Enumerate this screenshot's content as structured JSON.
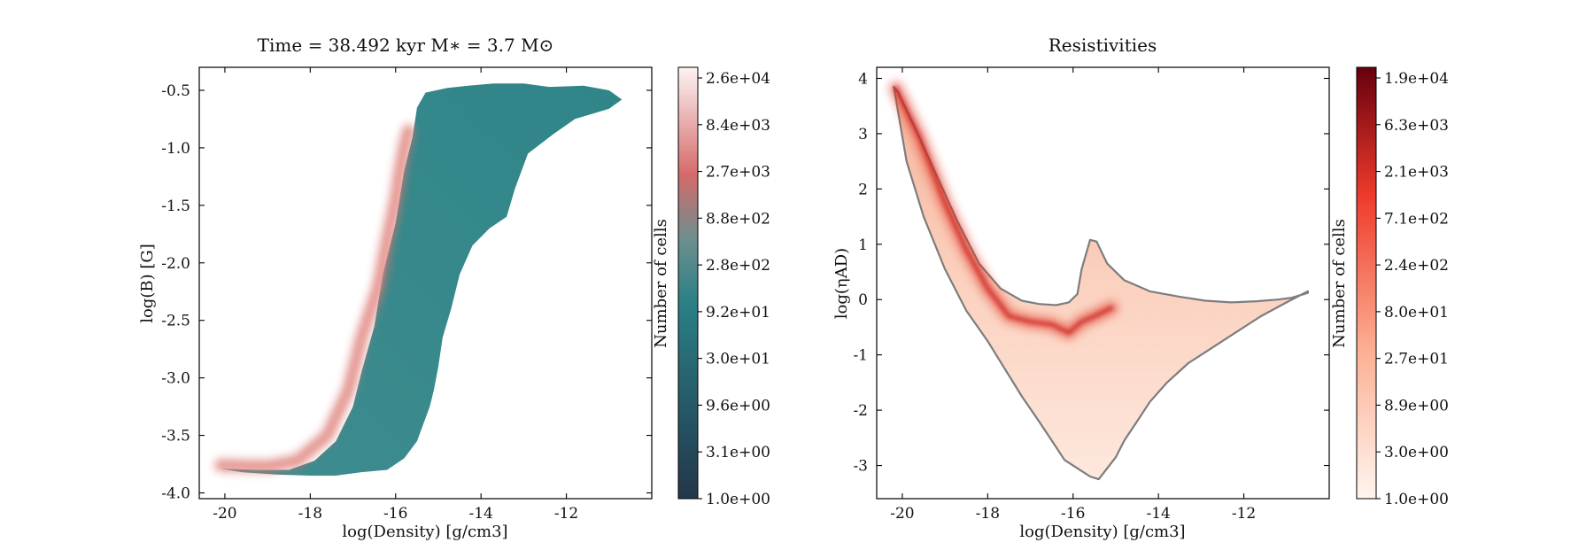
{
  "chart_data": [
    {
      "type": "heatmap",
      "title": "Time = 38.492 kyr    M$_*$ = 3.7 M$_\\odot$",
      "title_display": "Time = 38.492 kyr    M∗ = 3.7 M⊙",
      "xlabel": "log(Density) [g/cm3]",
      "ylabel": "log(B) [G]",
      "xlim": [
        -20.6,
        -10.0
      ],
      "ylim": [
        -4.05,
        -0.3
      ],
      "xticks": [
        -20,
        -18,
        -16,
        -14,
        -12
      ],
      "xtick_labels": [
        "-20",
        "-18",
        "-16",
        "-14",
        "-12"
      ],
      "yticks": [
        -4.0,
        -3.5,
        -3.0,
        -2.5,
        -2.0,
        -1.5,
        -1.0,
        -0.5
      ],
      "ytick_labels": [
        "-4.0",
        "-3.5",
        "-3.0",
        "-2.5",
        "-2.0",
        "-1.5",
        "-1.0",
        "-0.5"
      ],
      "grid": false,
      "colormap": "dark-teal to pink to white",
      "colors": [
        "#22374a",
        "#2a7f86",
        "#d46a6a",
        "#fdf3f3"
      ],
      "colorbar": {
        "label": "Number of cells",
        "scale": "log",
        "tick_labels": [
          "1.0e+00",
          "3.1e+00",
          "9.6e+00",
          "3.0e+01",
          "9.2e+01",
          "2.8e+02",
          "8.8e+02",
          "2.7e+03",
          "8.4e+03",
          "2.6e+04"
        ]
      },
      "region_outline": {
        "x": [
          -20.1,
          -19.2,
          -18.5,
          -17.9,
          -17.4,
          -17.0,
          -16.8,
          -16.5,
          -16.3,
          -16.0,
          -15.8,
          -15.6,
          -15.5,
          -15.3,
          -14.8,
          -14.3,
          -13.7,
          -13.0,
          -12.4,
          -11.6,
          -11.0,
          -10.7,
          -11.0,
          -11.8,
          -12.3,
          -12.9,
          -13.2,
          -13.4,
          -13.8,
          -14.2,
          -14.5,
          -14.7,
          -14.9,
          -15.0,
          -15.1,
          -15.2,
          -15.3,
          -15.5,
          -15.8,
          -16.2,
          -16.8,
          -17.4,
          -18.0,
          -18.8,
          -19.6,
          -20.1
        ],
        "y": [
          -3.79,
          -3.8,
          -3.8,
          -3.72,
          -3.55,
          -3.25,
          -2.95,
          -2.55,
          -2.1,
          -1.65,
          -1.2,
          -0.9,
          -0.65,
          -0.52,
          -0.48,
          -0.46,
          -0.44,
          -0.44,
          -0.47,
          -0.46,
          -0.5,
          -0.58,
          -0.66,
          -0.75,
          -0.88,
          -1.05,
          -1.35,
          -1.6,
          -1.7,
          -1.85,
          -2.1,
          -2.4,
          -2.65,
          -2.9,
          -3.1,
          -3.25,
          -3.35,
          -3.55,
          -3.7,
          -3.8,
          -3.82,
          -3.85,
          -3.85,
          -3.84,
          -3.82,
          -3.79
        ]
      },
      "ridge": {
        "x": [
          -20.1,
          -19.0,
          -18.3,
          -17.6,
          -17.1,
          -16.8,
          -16.4,
          -16.2,
          -16.0,
          -15.9,
          -15.8,
          -15.7
        ],
        "y": [
          -3.76,
          -3.77,
          -3.72,
          -3.5,
          -3.1,
          -2.65,
          -2.2,
          -1.8,
          -1.45,
          -1.2,
          -1.0,
          -0.85
        ]
      }
    },
    {
      "type": "heatmap",
      "title": "Resistivities",
      "xlabel": "log(Density) [g/cm3]",
      "ylabel": "log($\\eta_{\\rm AD}$)",
      "ylabel_display": "log(ηAD)",
      "xlim": [
        -20.6,
        -10.0
      ],
      "ylim": [
        -3.6,
        4.2
      ],
      "xticks": [
        -20,
        -18,
        -16,
        -14,
        -12
      ],
      "xtick_labels": [
        "-20",
        "-18",
        "-16",
        "-14",
        "-12"
      ],
      "yticks": [
        -3,
        -2,
        -1,
        0,
        1,
        2,
        3,
        4
      ],
      "ytick_labels": [
        "-3",
        "-2",
        "-1",
        "0",
        "1",
        "2",
        "3",
        "4"
      ],
      "grid": false,
      "colormap": "Reds",
      "colors": [
        "#fff5ef",
        "#fcae91",
        "#ef3b2c",
        "#67000d"
      ],
      "colorbar": {
        "label": "Number of cells",
        "scale": "log",
        "tick_labels": [
          "1.0e+00",
          "3.0e+00",
          "8.9e+00",
          "2.7e+01",
          "8.0e+01",
          "2.4e+02",
          "7.1e+02",
          "2.1e+03",
          "6.3e+03",
          "1.9e+04"
        ]
      },
      "region_outline": {
        "x": [
          -20.2,
          -20.1,
          -19.7,
          -19.2,
          -18.7,
          -18.2,
          -17.7,
          -17.2,
          -16.8,
          -16.4,
          -16.1,
          -15.9,
          -15.8,
          -15.6,
          -15.45,
          -15.2,
          -14.8,
          -14.2,
          -13.5,
          -12.9,
          -12.3,
          -11.7,
          -11.2,
          -10.9,
          -10.5,
          -10.5,
          -11.0,
          -11.6,
          -12.2,
          -12.8,
          -13.3,
          -13.8,
          -14.2,
          -14.5,
          -14.8,
          -15.0,
          -15.2,
          -15.4,
          -15.6,
          -15.9,
          -16.2,
          -16.5,
          -16.8,
          -17.2,
          -17.6,
          -18.0,
          -18.5,
          -19.0,
          -19.5,
          -19.9,
          -20.2
        ],
        "y": [
          3.85,
          3.75,
          3.1,
          2.25,
          1.4,
          0.65,
          0.2,
          -0.02,
          -0.08,
          -0.1,
          -0.05,
          0.1,
          0.55,
          1.08,
          1.05,
          0.65,
          0.35,
          0.15,
          0.05,
          -0.02,
          -0.05,
          -0.03,
          0.0,
          0.03,
          0.12,
          0.15,
          -0.05,
          -0.3,
          -0.6,
          -0.9,
          -1.15,
          -1.5,
          -1.85,
          -2.2,
          -2.55,
          -2.85,
          -3.05,
          -3.25,
          -3.2,
          -3.05,
          -2.9,
          -2.55,
          -2.2,
          -1.75,
          -1.25,
          -0.75,
          -0.2,
          0.55,
          1.5,
          2.5,
          3.85
        ]
      },
      "ridge": {
        "x": [
          -20.15,
          -19.6,
          -19.0,
          -18.5,
          -18.0,
          -17.5,
          -17.0,
          -16.5,
          -16.1,
          -15.8,
          -15.5,
          -15.1
        ],
        "y": [
          3.82,
          2.95,
          1.75,
          0.9,
          0.2,
          -0.3,
          -0.4,
          -0.45,
          -0.6,
          -0.4,
          -0.3,
          -0.15
        ]
      }
    }
  ]
}
